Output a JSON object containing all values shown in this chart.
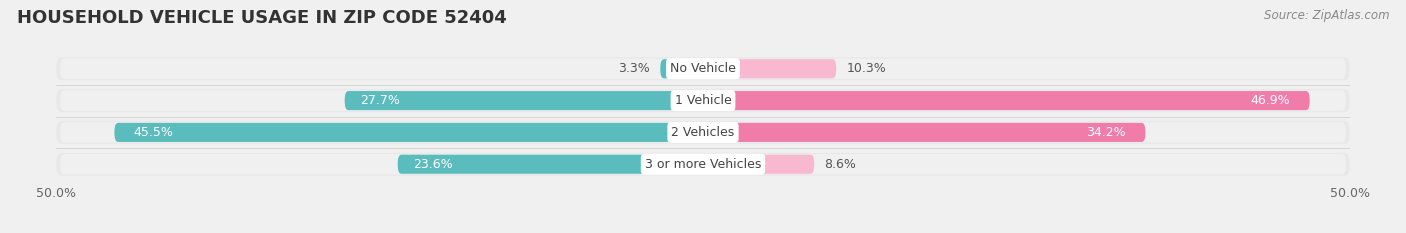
{
  "title": "HOUSEHOLD VEHICLE USAGE IN ZIP CODE 52404",
  "source": "Source: ZipAtlas.com",
  "categories": [
    "No Vehicle",
    "1 Vehicle",
    "2 Vehicles",
    "3 or more Vehicles"
  ],
  "owner_values": [
    3.3,
    27.7,
    45.5,
    23.6
  ],
  "renter_values": [
    10.3,
    46.9,
    34.2,
    8.6
  ],
  "owner_color": "#5bbcbe",
  "renter_color": "#f07caa",
  "renter_color_light": "#f7b8d0",
  "xlim": 50.0,
  "background_color": "#f0f0f0",
  "bar_background_color": "#e2e2e2",
  "bar_bg_light": "#ececec",
  "title_fontsize": 13,
  "source_fontsize": 8.5,
  "label_fontsize": 9,
  "category_fontsize": 9,
  "legend_fontsize": 9,
  "tick_fontsize": 9
}
